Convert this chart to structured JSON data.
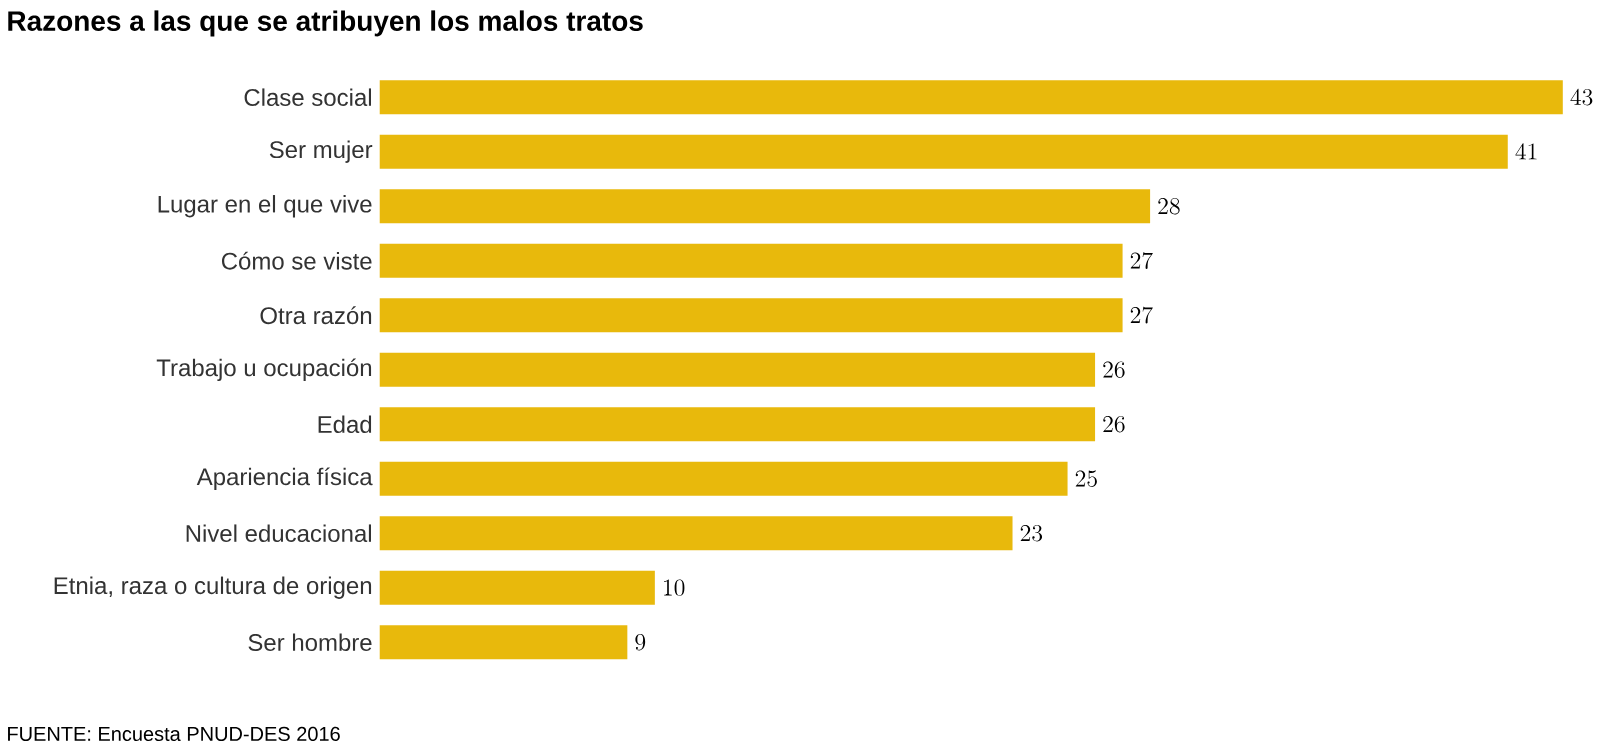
{
  "chart_data": {
    "type": "bar",
    "orientation": "horizontal",
    "title": "Razones a las que se atribuyen los malos tratos",
    "categories": [
      "Clase social",
      "Ser mujer",
      "Lugar en el que vive",
      "Cómo se viste",
      "Otra razón",
      "Trabajo u ocupación",
      "Edad",
      "Apariencia física",
      "Nivel educacional",
      "Etnia, raza o cultura de origen",
      "Ser hombre"
    ],
    "values": [
      43,
      41,
      28,
      27,
      27,
      26,
      26,
      25,
      23,
      10,
      9
    ],
    "color": "#e8b90c",
    "data_labels": true,
    "annotations": [
      "FUENTE: Encuesta PNUD-DES 2016"
    ]
  }
}
